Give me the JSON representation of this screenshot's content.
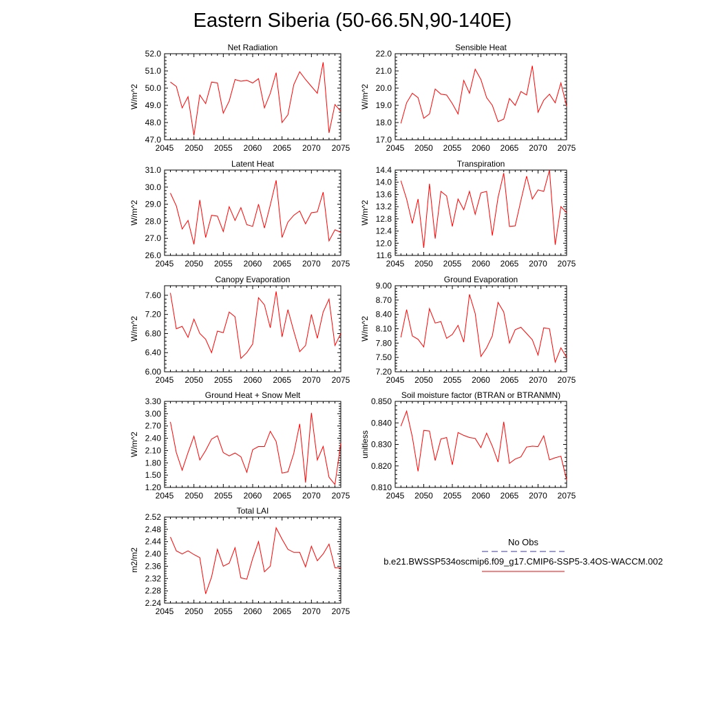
{
  "title": "Eastern Siberia (50-66.5N,90-140E)",
  "colors": {
    "model_line": "#ff0000",
    "obs_line": "#3a3aa0",
    "axis": "#000000"
  },
  "legend": {
    "obs_label": "No Obs",
    "model_label": "b.e21.BWSSP534oscmip6.f09_g17.CMIP6-SSP5-3.4OS-WACCM.002"
  },
  "chart_data": [
    {
      "type": "line",
      "title": "Net Radiation",
      "ylabel": "W/m^2",
      "xlim": [
        2045,
        2075
      ],
      "ylim": [
        47.0,
        52.0
      ],
      "xticks": [
        "2045",
        "2050",
        "2055",
        "2060",
        "2065",
        "2070",
        "2075"
      ],
      "yticks": [
        "47.0",
        "48.0",
        "49.0",
        "50.0",
        "51.0",
        "52.0"
      ],
      "x": [
        2046,
        2047,
        2048,
        2049,
        2050,
        2051,
        2052,
        2053,
        2054,
        2055,
        2056,
        2057,
        2058,
        2059,
        2060,
        2061,
        2062,
        2063,
        2064,
        2065,
        2066,
        2067,
        2068,
        2069,
        2070,
        2071,
        2072,
        2073,
        2074,
        2075
      ],
      "series": [
        {
          "values": [
            50.35,
            50.1,
            48.85,
            49.5,
            47.25,
            49.6,
            49.1,
            50.35,
            50.3,
            48.55,
            49.25,
            50.5,
            50.4,
            50.45,
            50.3,
            50.55,
            48.85,
            49.7,
            50.9,
            48.0,
            48.45,
            50.2,
            50.95,
            50.5,
            50.1,
            49.7,
            51.5,
            47.4,
            49.05,
            48.65
          ]
        }
      ]
    },
    {
      "type": "line",
      "title": "Sensible Heat",
      "ylabel": "W/m^2",
      "xlim": [
        2045,
        2075
      ],
      "ylim": [
        17.0,
        22.0
      ],
      "xticks": [
        "2045",
        "2050",
        "2055",
        "2060",
        "2065",
        "2070",
        "2075"
      ],
      "yticks": [
        "17.0",
        "18.0",
        "19.0",
        "20.0",
        "21.0",
        "22.0"
      ],
      "x": [
        2046,
        2047,
        2048,
        2049,
        2050,
        2051,
        2052,
        2053,
        2054,
        2055,
        2056,
        2057,
        2058,
        2059,
        2060,
        2061,
        2062,
        2063,
        2064,
        2065,
        2066,
        2067,
        2068,
        2069,
        2070,
        2071,
        2072,
        2073,
        2074,
        2075
      ],
      "series": [
        {
          "values": [
            17.95,
            19.15,
            19.7,
            19.45,
            18.25,
            18.5,
            19.95,
            19.65,
            19.6,
            19.1,
            18.5,
            20.45,
            19.7,
            21.1,
            20.5,
            19.45,
            19.0,
            18.05,
            18.2,
            19.4,
            19.0,
            19.8,
            19.6,
            21.3,
            18.6,
            19.3,
            19.65,
            19.15,
            20.3,
            18.95
          ]
        }
      ]
    },
    {
      "type": "line",
      "title": "Latent Heat",
      "ylabel": "W/m^2",
      "xlim": [
        2045,
        2075
      ],
      "ylim": [
        26.0,
        31.0
      ],
      "xticks": [
        "2045",
        "2050",
        "2055",
        "2060",
        "2065",
        "2070",
        "2075"
      ],
      "yticks": [
        "26.0",
        "27.0",
        "28.0",
        "29.0",
        "30.0",
        "31.0"
      ],
      "x": [
        2046,
        2047,
        2048,
        2049,
        2050,
        2051,
        2052,
        2053,
        2054,
        2055,
        2056,
        2057,
        2058,
        2059,
        2060,
        2061,
        2062,
        2063,
        2064,
        2065,
        2066,
        2067,
        2068,
        2069,
        2070,
        2071,
        2072,
        2073,
        2074,
        2075
      ],
      "series": [
        {
          "values": [
            29.65,
            28.9,
            27.55,
            28.05,
            26.65,
            29.25,
            27.05,
            28.35,
            28.3,
            27.4,
            28.85,
            28.05,
            28.8,
            27.8,
            27.7,
            29.0,
            27.6,
            28.95,
            30.4,
            27.05,
            27.95,
            28.35,
            28.6,
            27.85,
            28.5,
            28.55,
            29.7,
            26.85,
            27.5,
            27.35
          ]
        }
      ]
    },
    {
      "type": "line",
      "title": "Transpiration",
      "ylabel": "W/m^2",
      "xlim": [
        2045,
        2075
      ],
      "ylim": [
        11.6,
        14.4
      ],
      "xticks": [
        "2045",
        "2050",
        "2055",
        "2060",
        "2065",
        "2070",
        "2075"
      ],
      "yticks": [
        "11.6",
        "12.0",
        "12.4",
        "12.8",
        "13.2",
        "13.6",
        "14.0",
        "14.4"
      ],
      "x": [
        2046,
        2047,
        2048,
        2049,
        2050,
        2051,
        2052,
        2053,
        2054,
        2055,
        2056,
        2057,
        2058,
        2059,
        2060,
        2061,
        2062,
        2063,
        2064,
        2065,
        2066,
        2067,
        2068,
        2069,
        2070,
        2071,
        2072,
        2073,
        2074,
        2075
      ],
      "series": [
        {
          "values": [
            14.05,
            13.45,
            12.65,
            13.45,
            11.85,
            13.95,
            12.15,
            13.7,
            13.55,
            12.55,
            13.45,
            13.1,
            13.7,
            12.95,
            13.65,
            13.7,
            12.25,
            13.5,
            14.3,
            12.55,
            12.57,
            13.4,
            14.2,
            13.45,
            13.75,
            13.7,
            14.4,
            11.95,
            13.2,
            13.0
          ]
        }
      ]
    },
    {
      "type": "line",
      "title": "Canopy Evaporation",
      "ylabel": "W/m^2",
      "xlim": [
        2045,
        2075
      ],
      "ylim": [
        6.0,
        7.8
      ],
      "xticks": [
        "2045",
        "2050",
        "2055",
        "2060",
        "2065",
        "2070",
        "2075"
      ],
      "yticks": [
        "6.00",
        "6.40",
        "6.80",
        "7.20",
        "7.60"
      ],
      "x": [
        2046,
        2047,
        2048,
        2049,
        2050,
        2051,
        2052,
        2053,
        2054,
        2055,
        2056,
        2057,
        2058,
        2059,
        2060,
        2061,
        2062,
        2063,
        2064,
        2065,
        2066,
        2067,
        2068,
        2069,
        2070,
        2071,
        2072,
        2073,
        2074,
        2075
      ],
      "series": [
        {
          "values": [
            7.65,
            6.9,
            6.95,
            6.72,
            7.1,
            6.8,
            6.68,
            6.4,
            6.85,
            6.82,
            7.25,
            7.15,
            6.28,
            6.4,
            6.58,
            7.55,
            7.4,
            6.92,
            7.68,
            6.73,
            7.3,
            6.85,
            6.42,
            6.55,
            7.2,
            6.7,
            7.25,
            7.52,
            6.55,
            6.8
          ]
        }
      ]
    },
    {
      "type": "line",
      "title": "Ground Evaporation",
      "ylabel": "W/m^2",
      "xlim": [
        2045,
        2075
      ],
      "ylim": [
        7.2,
        9.0
      ],
      "xticks": [
        "2045",
        "2050",
        "2055",
        "2060",
        "2065",
        "2070",
        "2075"
      ],
      "yticks": [
        "7.20",
        "7.50",
        "7.80",
        "8.10",
        "8.40",
        "8.70",
        "9.00"
      ],
      "x": [
        2046,
        2047,
        2048,
        2049,
        2050,
        2051,
        2052,
        2053,
        2054,
        2055,
        2056,
        2057,
        2058,
        2059,
        2060,
        2061,
        2062,
        2063,
        2064,
        2065,
        2066,
        2067,
        2068,
        2069,
        2070,
        2071,
        2072,
        2073,
        2074,
        2075
      ],
      "series": [
        {
          "values": [
            7.92,
            8.5,
            7.95,
            7.88,
            7.72,
            8.52,
            8.22,
            8.25,
            7.9,
            7.98,
            8.17,
            7.82,
            8.82,
            8.42,
            7.52,
            7.7,
            7.95,
            8.65,
            8.45,
            7.8,
            8.08,
            8.13,
            8.0,
            7.87,
            7.55,
            8.12,
            8.1,
            7.4,
            7.7,
            7.5
          ]
        }
      ]
    },
    {
      "type": "line",
      "title": "Ground Heat + Snow Melt",
      "ylabel": "W/m^2",
      "xlim": [
        2045,
        2075
      ],
      "ylim": [
        1.2,
        3.3
      ],
      "xticks": [
        "2045",
        "2050",
        "2055",
        "2060",
        "2065",
        "2070",
        "2075"
      ],
      "yticks": [
        "1.20",
        "1.50",
        "1.80",
        "2.10",
        "2.40",
        "2.70",
        "3.00",
        "3.30"
      ],
      "x": [
        2046,
        2047,
        2048,
        2049,
        2050,
        2051,
        2052,
        2053,
        2054,
        2055,
        2056,
        2057,
        2058,
        2059,
        2060,
        2061,
        2062,
        2063,
        2064,
        2065,
        2066,
        2067,
        2068,
        2069,
        2070,
        2071,
        2072,
        2073,
        2074,
        2075
      ],
      "series": [
        {
          "values": [
            2.8,
            2.05,
            1.62,
            2.05,
            2.45,
            1.87,
            2.1,
            2.38,
            2.46,
            2.05,
            1.97,
            2.04,
            1.95,
            1.57,
            2.12,
            2.2,
            2.2,
            2.57,
            2.32,
            1.55,
            1.58,
            2.03,
            2.75,
            1.32,
            3.02,
            1.87,
            2.2,
            1.45,
            1.27,
            2.28
          ]
        }
      ]
    },
    {
      "type": "line",
      "title": "Soil moisture factor (BTRAN or BTRANMN)",
      "ylabel": "unitless",
      "xlim": [
        2045,
        2075
      ],
      "ylim": [
        0.81,
        0.85
      ],
      "xticks": [
        "2045",
        "2050",
        "2055",
        "2060",
        "2065",
        "2070",
        "2075"
      ],
      "yticks": [
        "0.810",
        "0.820",
        "0.830",
        "0.840",
        "0.850"
      ],
      "x": [
        2046,
        2047,
        2048,
        2049,
        2050,
        2051,
        2052,
        2053,
        2054,
        2055,
        2056,
        2057,
        2058,
        2059,
        2060,
        2061,
        2062,
        2063,
        2064,
        2065,
        2066,
        2067,
        2068,
        2069,
        2070,
        2071,
        2072,
        2073,
        2074,
        2075
      ],
      "series": [
        {
          "values": [
            0.8385,
            0.8455,
            0.8335,
            0.8175,
            0.8365,
            0.8362,
            0.8225,
            0.8325,
            0.8332,
            0.8205,
            0.8355,
            0.8342,
            0.8332,
            0.8328,
            0.8285,
            0.8352,
            0.8292,
            0.8218,
            0.8405,
            0.8212,
            0.8232,
            0.8242,
            0.8288,
            0.8292,
            0.829,
            0.834,
            0.8228,
            0.8238,
            0.8245,
            0.8135
          ]
        }
      ]
    },
    {
      "type": "line",
      "title": "Total LAI",
      "ylabel": "m2/m2",
      "xlim": [
        2045,
        2075
      ],
      "ylim": [
        2.24,
        2.52
      ],
      "xticks": [
        "2045",
        "2050",
        "2055",
        "2060",
        "2065",
        "2070",
        "2075"
      ],
      "yticks": [
        "2.24",
        "2.28",
        "2.32",
        "2.36",
        "2.40",
        "2.44",
        "2.48",
        "2.52"
      ],
      "x": [
        2046,
        2047,
        2048,
        2049,
        2050,
        2051,
        2052,
        2053,
        2054,
        2055,
        2056,
        2057,
        2058,
        2059,
        2060,
        2061,
        2062,
        2063,
        2064,
        2065,
        2066,
        2067,
        2068,
        2069,
        2070,
        2071,
        2072,
        2073,
        2074,
        2075
      ],
      "series": [
        {
          "values": [
            2.455,
            2.41,
            2.4,
            2.41,
            2.398,
            2.388,
            2.27,
            2.325,
            2.415,
            2.36,
            2.37,
            2.42,
            2.322,
            2.318,
            2.385,
            2.44,
            2.342,
            2.36,
            2.485,
            2.448,
            2.415,
            2.405,
            2.405,
            2.358,
            2.425,
            2.378,
            2.4,
            2.432,
            2.355,
            2.355
          ]
        }
      ]
    }
  ]
}
